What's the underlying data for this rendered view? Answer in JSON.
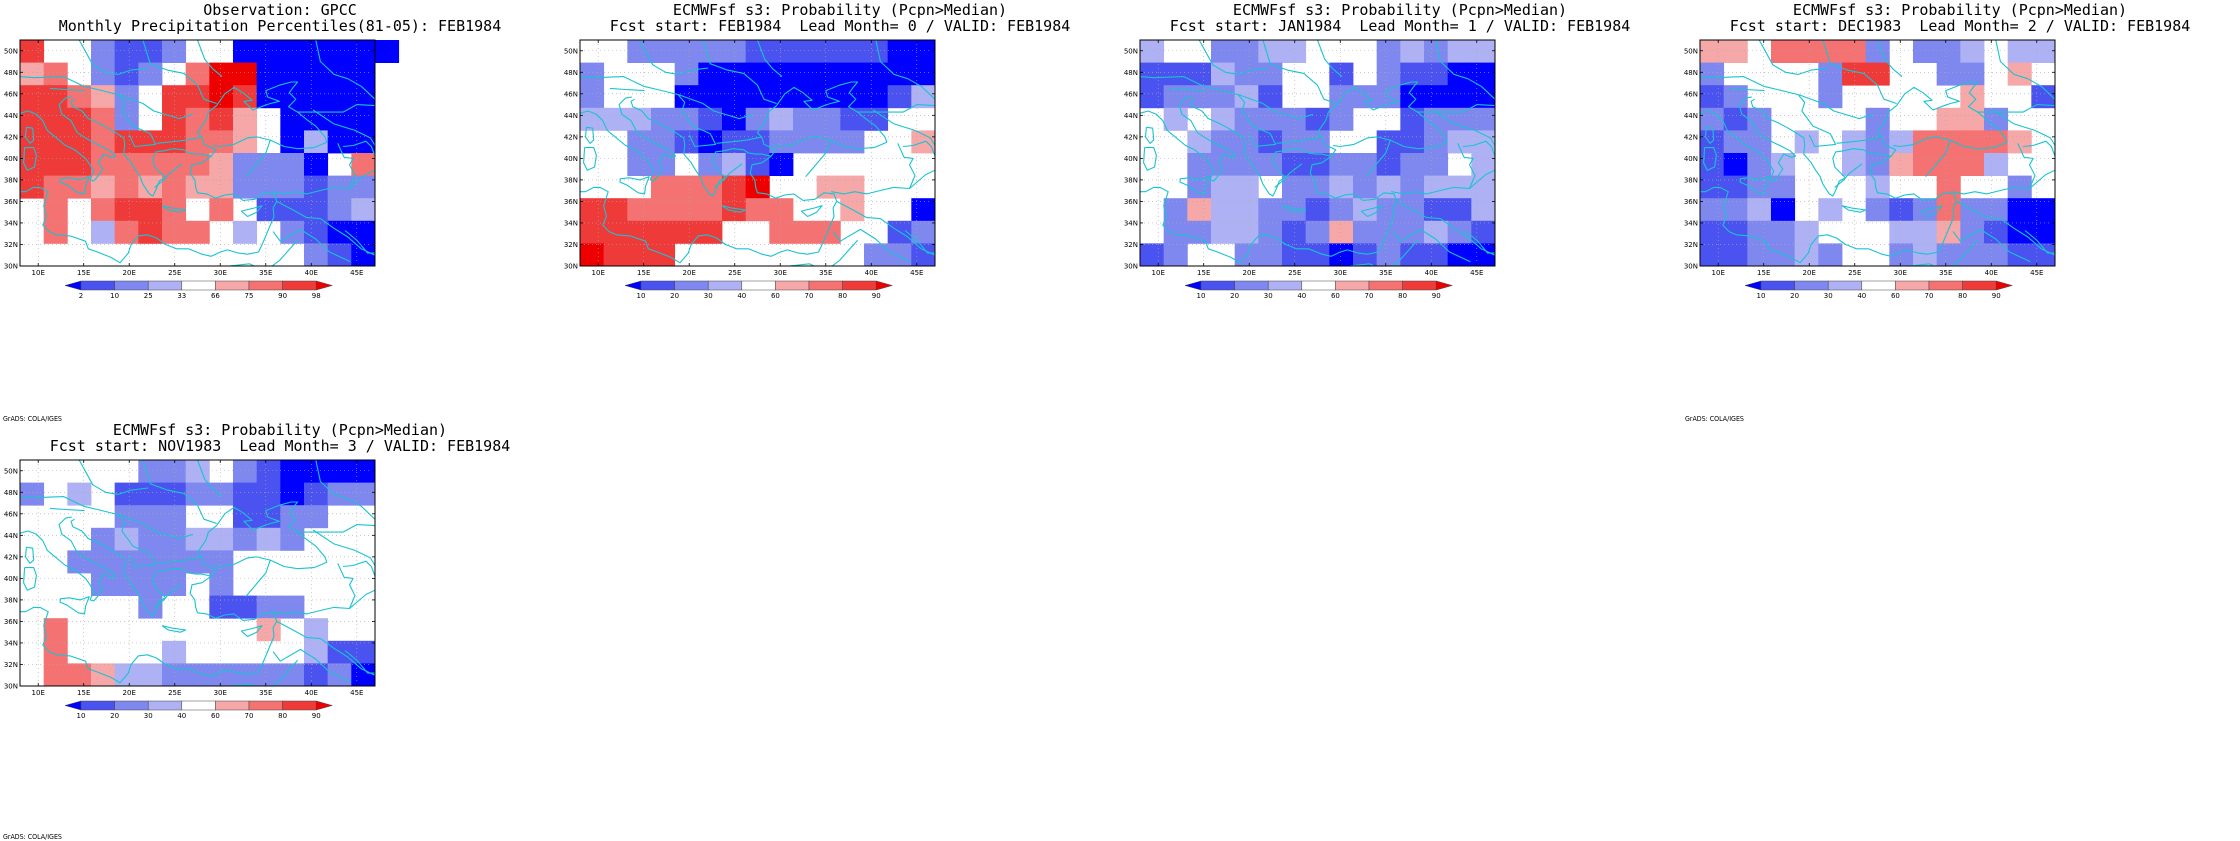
{
  "credit": "GrADS: COLA/IGES",
  "lat_labels": [
    "50N",
    "48N",
    "46N",
    "44N",
    "42N",
    "40N",
    "38N",
    "36N",
    "34N",
    "32N",
    "30N"
  ],
  "lon_labels": [
    "10E",
    "15E",
    "20E",
    "25E",
    "30E",
    "35E",
    "40E",
    "45E"
  ],
  "colors": {
    "blue3": "#0000ff",
    "blue2": "#4a52f0",
    "blue1": "#7f88ee",
    "blue0": "#aeb2f4",
    "white": "#ffffff",
    "red0": "#f6a7a7",
    "red1": "#f47272",
    "red2": "#ef3a3a",
    "red3": "#ef0000",
    "coast": "#19c3d2",
    "grid": "#aaaaaa"
  },
  "panels": [
    {
      "title1": "Observation: GPCC",
      "title2": "Monthly Precipitation Percentiles(81-05): FEB1984",
      "legend": [
        "2",
        "10",
        "25",
        "33",
        "66",
        "75",
        "90",
        "98"
      ],
      "cells": [
        "r2 W W B1 B2 B2 B1 W W B3 B3 B3 B3 B3 B3 B3",
        "r0 r1 W B1 B2 B1 W r1 r3 r3 B3 B3 B3 B3 B3",
        "r2 r2 r1 r0 B1 W r2 r2 r3 r2 B3 B3 B3 B3 B3",
        "r2 r2 r2 r1 B1 W r2 r1 r2 r0 W B3 B3 B3 B3",
        "r2 r2 r2 r1 r2 r2 r2 r1 r1 r0 W B3 B0 B3 B3",
        "r2 r2 r2 r1 r1 r1 r1 r1 r0 B1 B1 B1 B3 W r1",
        "r2 r1 r1 r0 r1 r0 r1 r0 r0 B1 B1 B1 B2 B1 B1",
        "W r1 W r1 r2 r2 r1 W r1 W B2 B2 B2 B1 B0",
        "W r1 W B0 r1 r2 r1 r1 W B0 W B1 B2 B3 B3",
        "W W W W W W W W W W W W B1 B2 B3"
      ]
    },
    {
      "title1": "ECMWFsf s3: Probability (Pcpn>Median)",
      "title2": "Fcst start: FEB1984  Lead Month= 0 / VALID: FEB1984",
      "legend": [
        "10",
        "20",
        "30",
        "40",
        "60",
        "70",
        "80",
        "90"
      ],
      "cells": [
        "W W B1 B1 B1 B1 B1 B2 B2 B2 B2 B2 B2 B3 B3",
        "B1 W W W B1 B3 B3 B3 B3 B3 B3 B3 B3 B3 B3",
        "B1 W W W B3 B3 B3 B3 B3 B3 B3 B3 B3 B2 B0",
        "B0 B0 B0 B1 B1 B2 B3 B1 B0 B1 B1 B2 B2 W W",
        "W W B1 B1 B2 B3 B2 B2 B1 B1 B1 B1 W W r0",
        "W W B1 B1 W B1 B0 B2 B3 W W W W W W",
        "W W W r1 r1 r1 r2 r3 W W r0 r0 W W W",
        "r2 r2 r1 r1 r1 r1 r2 r1 r1 W W r0 W W B3",
        "r2 r2 r2 r2 r2 r2 W W r1 r1 r1 W W B2 B1",
        "r3 r2 r2 r2 W W W W W W W W B1 B1 B2"
      ]
    },
    {
      "title1": "ECMWFsf s3: Probability (Pcpn>Median)",
      "title2": "Fcst start: JAN1984  Lead Month= 1 / VALID: FEB1984",
      "legend": [
        "10",
        "20",
        "30",
        "40",
        "60",
        "70",
        "80",
        "90"
      ],
      "cells": [
        "B0 W W B1 B1 B0 B0 W W W B1 B0 B1 B0 B0",
        "B2 B2 B2 B0 B1 B1 W W B2 W B1 B2 B2 B3 B3",
        "B2 B1 B1 B1 B0 B2 W W B1 B1 B1 B3 B3 B3 B3",
        "W B0 W B0 B1 B1 B1 B2 B1 W W B2 B1 B1 B1",
        "W W B0 B1 B1 B2 B1 B1 W W B2 B2 B1 B0 B0",
        "W W B1 B1 B1 B1 B2 B2 B1 B1 B2 B1 B1 W B0",
        "W W B1 B0 B0 W B1 B1 B0 B1 B0 B1 B0 B0 B0",
        "W B1 r0 B0 B0 B1 B1 B2 B1 B0 B1 B1 B2 B2 B0",
        "W B1 B1 B0 B0 B1 B2 B1 r0 B1 B1 B1 B0 B1 B2",
        "B2 B1 W W B1 B1 B2 B2 B3 B2 B1 B2 B2 B3 B3"
      ]
    },
    {
      "title1": "ECMWFsf s3: Probability (Pcpn>Median)",
      "title2": "Fcst start: DEC1983  Lead Month= 2 / VALID: FEB1984",
      "legend": [
        "10",
        "20",
        "30",
        "40",
        "60",
        "70",
        "80",
        "90"
      ],
      "cells": [
        "r0 r0 W r1 r1 r1 r1 B1 W B1 B1 B0 W B0 B0",
        "B1 W W W W B1 r2 r2 W W B1 B1 W r0 W",
        "B2 B1 W W W B1 W W W W W r0 W W B2",
        "B1 B2 B1 W W W W B1 W W r0 r0 B1 W W",
        "B2 B1 B1 W B0 W B0 B1 B0 r1 r1 r1 r1 r0 W",
        "B2 B3 B1 B0 W W B0 B1 r0 r1 r1 r1 B0 W W",
        "B2 B2 B1 B1 W W W B0 W W r1 W W B1 W",
        "B1 B1 B0 B3 W B0 W B1 B2 B1 r1 B1 B1 B3 B3",
        "B2 B2 B1 B1 B0 W W W B0 B0 r0 B1 B2 B3 B3",
        "B2 B2 B1 B1 B0 B1 W W B1 B0 B1 B1 B1 B2 B2"
      ]
    },
    {
      "title1": "ECMWFsf s3: Probability (Pcpn>Median)",
      "title2": "Fcst start: NOV1983  Lead Month= 3 / VALID: FEB1984",
      "legend": [
        "10",
        "20",
        "30",
        "40",
        "60",
        "70",
        "80",
        "90"
      ],
      "cells": [
        "W W W W W B1 B1 B0 W B1 B2 B3 B3 B3 B3",
        "B1 W B0 W B2 B2 B2 B1 B1 B2 B2 B3 B2 B1 B1",
        "W W W W B1 B1 B1 W W B2 B2 B1 B1 W W",
        "W W W B1 B0 B1 B1 B0 B0 B1 B0 B1 W W W",
        "W W B1 B1 B1 B1 B1 B1 B1 W W W W W W",
        "W W W B1 B1 B1 B1 W B1 W W W W W W",
        "W W W W W B1 W W B2 B2 B1 B1 W W W",
        "W r1 W W W W W W W W r0 W B0 W W",
        "W r1 W W W W B0 W W W W W B0 B2 B2",
        "W r1 r1 r0 B0 B0 B1 B1 B1 B1 B1 B1 B2 B1 B3"
      ]
    }
  ]
}
